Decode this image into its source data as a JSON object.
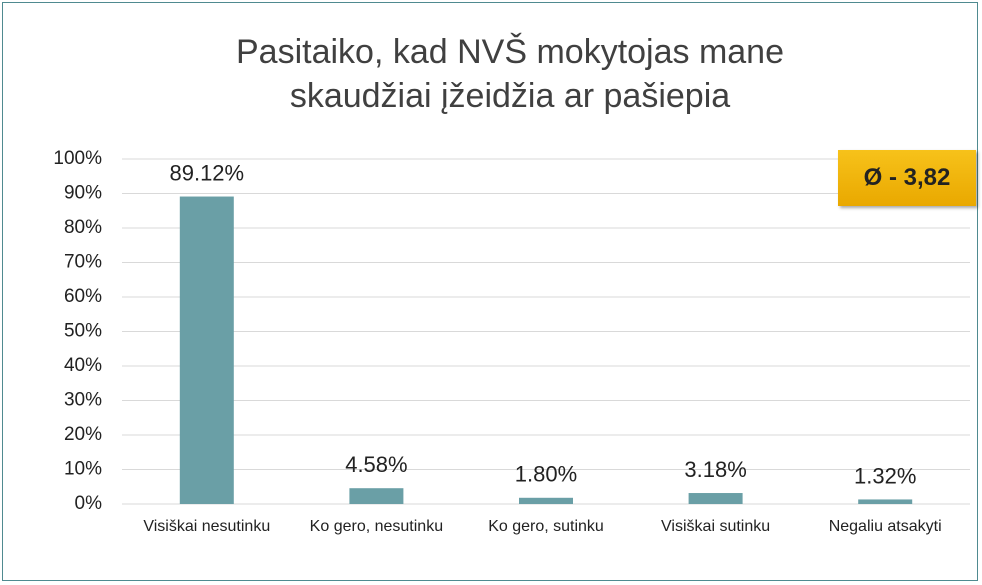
{
  "chart_data": {
    "type": "bar",
    "title": "Pasitaiko, kad NVŠ mokytojas mane skaudžiai įžeidžia ar pašiepia",
    "annotation": "Ø - 3,82",
    "categories": [
      "Visiškai nesutinku",
      "Ko gero, nesutinku",
      "Ko gero, sutinku",
      "Visiškai sutinku",
      "Negaliu atsakyti"
    ],
    "values": [
      89.12,
      4.58,
      1.8,
      3.18,
      1.32
    ],
    "value_labels": [
      "89.12%",
      "4.58%",
      "1.80%",
      "3.18%",
      "1.32%"
    ],
    "color": "#6a9fa6",
    "ylim": [
      0,
      100
    ],
    "yticks": [
      {
        "value": 0,
        "label": "0%"
      },
      {
        "value": 10,
        "label": "10%"
      },
      {
        "value": 20,
        "label": "20%"
      },
      {
        "value": 30,
        "label": "30%"
      },
      {
        "value": 40,
        "label": "40%"
      },
      {
        "value": 50,
        "label": "50%"
      },
      {
        "value": 60,
        "label": "60%"
      },
      {
        "value": 70,
        "label": "70%"
      },
      {
        "value": 80,
        "label": "80%"
      },
      {
        "value": 90,
        "label": "90%"
      },
      {
        "value": 100,
        "label": "100%"
      }
    ],
    "grid": true
  }
}
